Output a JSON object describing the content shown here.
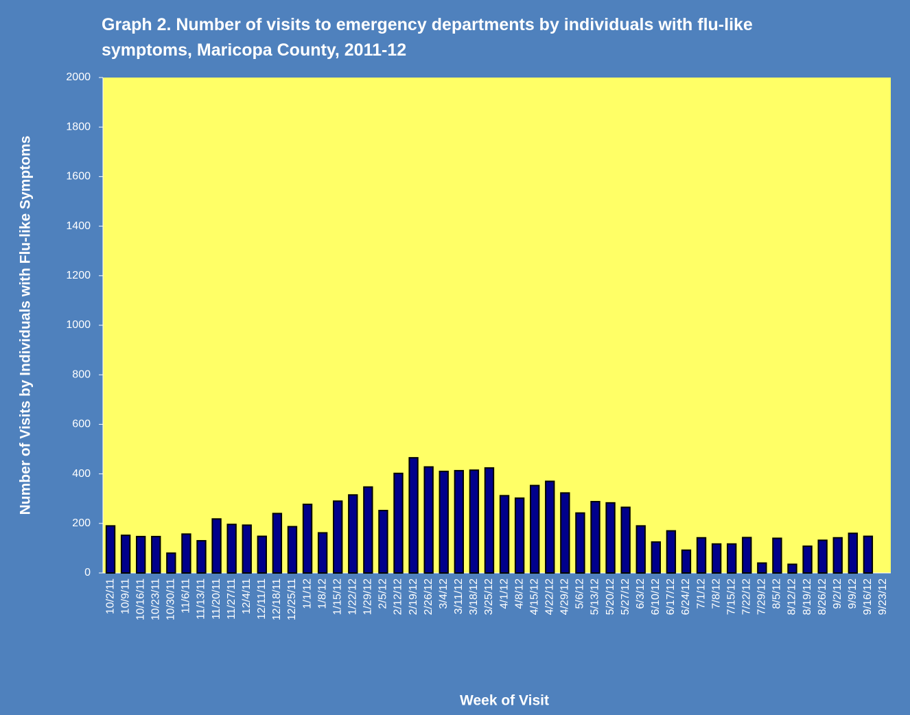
{
  "chart_data": {
    "type": "bar",
    "title": "Graph 2. Number of visits to emergency departments by individuals with flu-like symptoms, Maricopa County, 2011-12",
    "x_label": "Week of Visit",
    "y_label": "Number of Visits by Individuals with Flu-like Symptoms",
    "categories": [
      "10/2/11",
      "10/9/11",
      "10/16/11",
      "10/23/11",
      "10/30/11",
      "11/6/11",
      "11/13/11",
      "11/20/11",
      "11/27/11",
      "12/4/11",
      "12/11/11",
      "12/18/11",
      "12/25/11",
      "1/1/12",
      "1/8/12",
      "1/15/12",
      "1/22/12",
      "1/29/12",
      "2/5/12",
      "2/12/12",
      "2/19/12",
      "2/26/12",
      "3/4/12",
      "3/11/12",
      "3/18/12",
      "3/25/12",
      "4/1/12",
      "4/8/12",
      "4/15/12",
      "4/22/12",
      "4/29/12",
      "5/6/12",
      "5/13/12",
      "5/20/12",
      "5/27/12",
      "6/3/12",
      "6/10/12",
      "6/17/12",
      "6/24/12",
      "7/1/12",
      "7/8/12",
      "7/15/12",
      "7/22/12",
      "7/29/12",
      "8/5/12",
      "8/12/12",
      "8/19/12",
      "8/26/12",
      "9/2/12",
      "9/9/12",
      "9/16/12",
      "9/23/12"
    ],
    "values": [
      190,
      152,
      147,
      147,
      80,
      157,
      130,
      218,
      196,
      193,
      148,
      240,
      187,
      277,
      162,
      290,
      315,
      347,
      252,
      402,
      465,
      428,
      410,
      413,
      415,
      424,
      312,
      302,
      353,
      370,
      323,
      242,
      288,
      283,
      265,
      190,
      125,
      170,
      92,
      142,
      117,
      117,
      143,
      40,
      140,
      35,
      108,
      132,
      142,
      160,
      148,
      null
    ],
    "color": "#00008b",
    "ylim": [
      0,
      2000
    ],
    "yticks": [
      0,
      200,
      400,
      600,
      800,
      1000,
      1200,
      1400,
      1600,
      1800,
      2000
    ],
    "grid": false
  }
}
